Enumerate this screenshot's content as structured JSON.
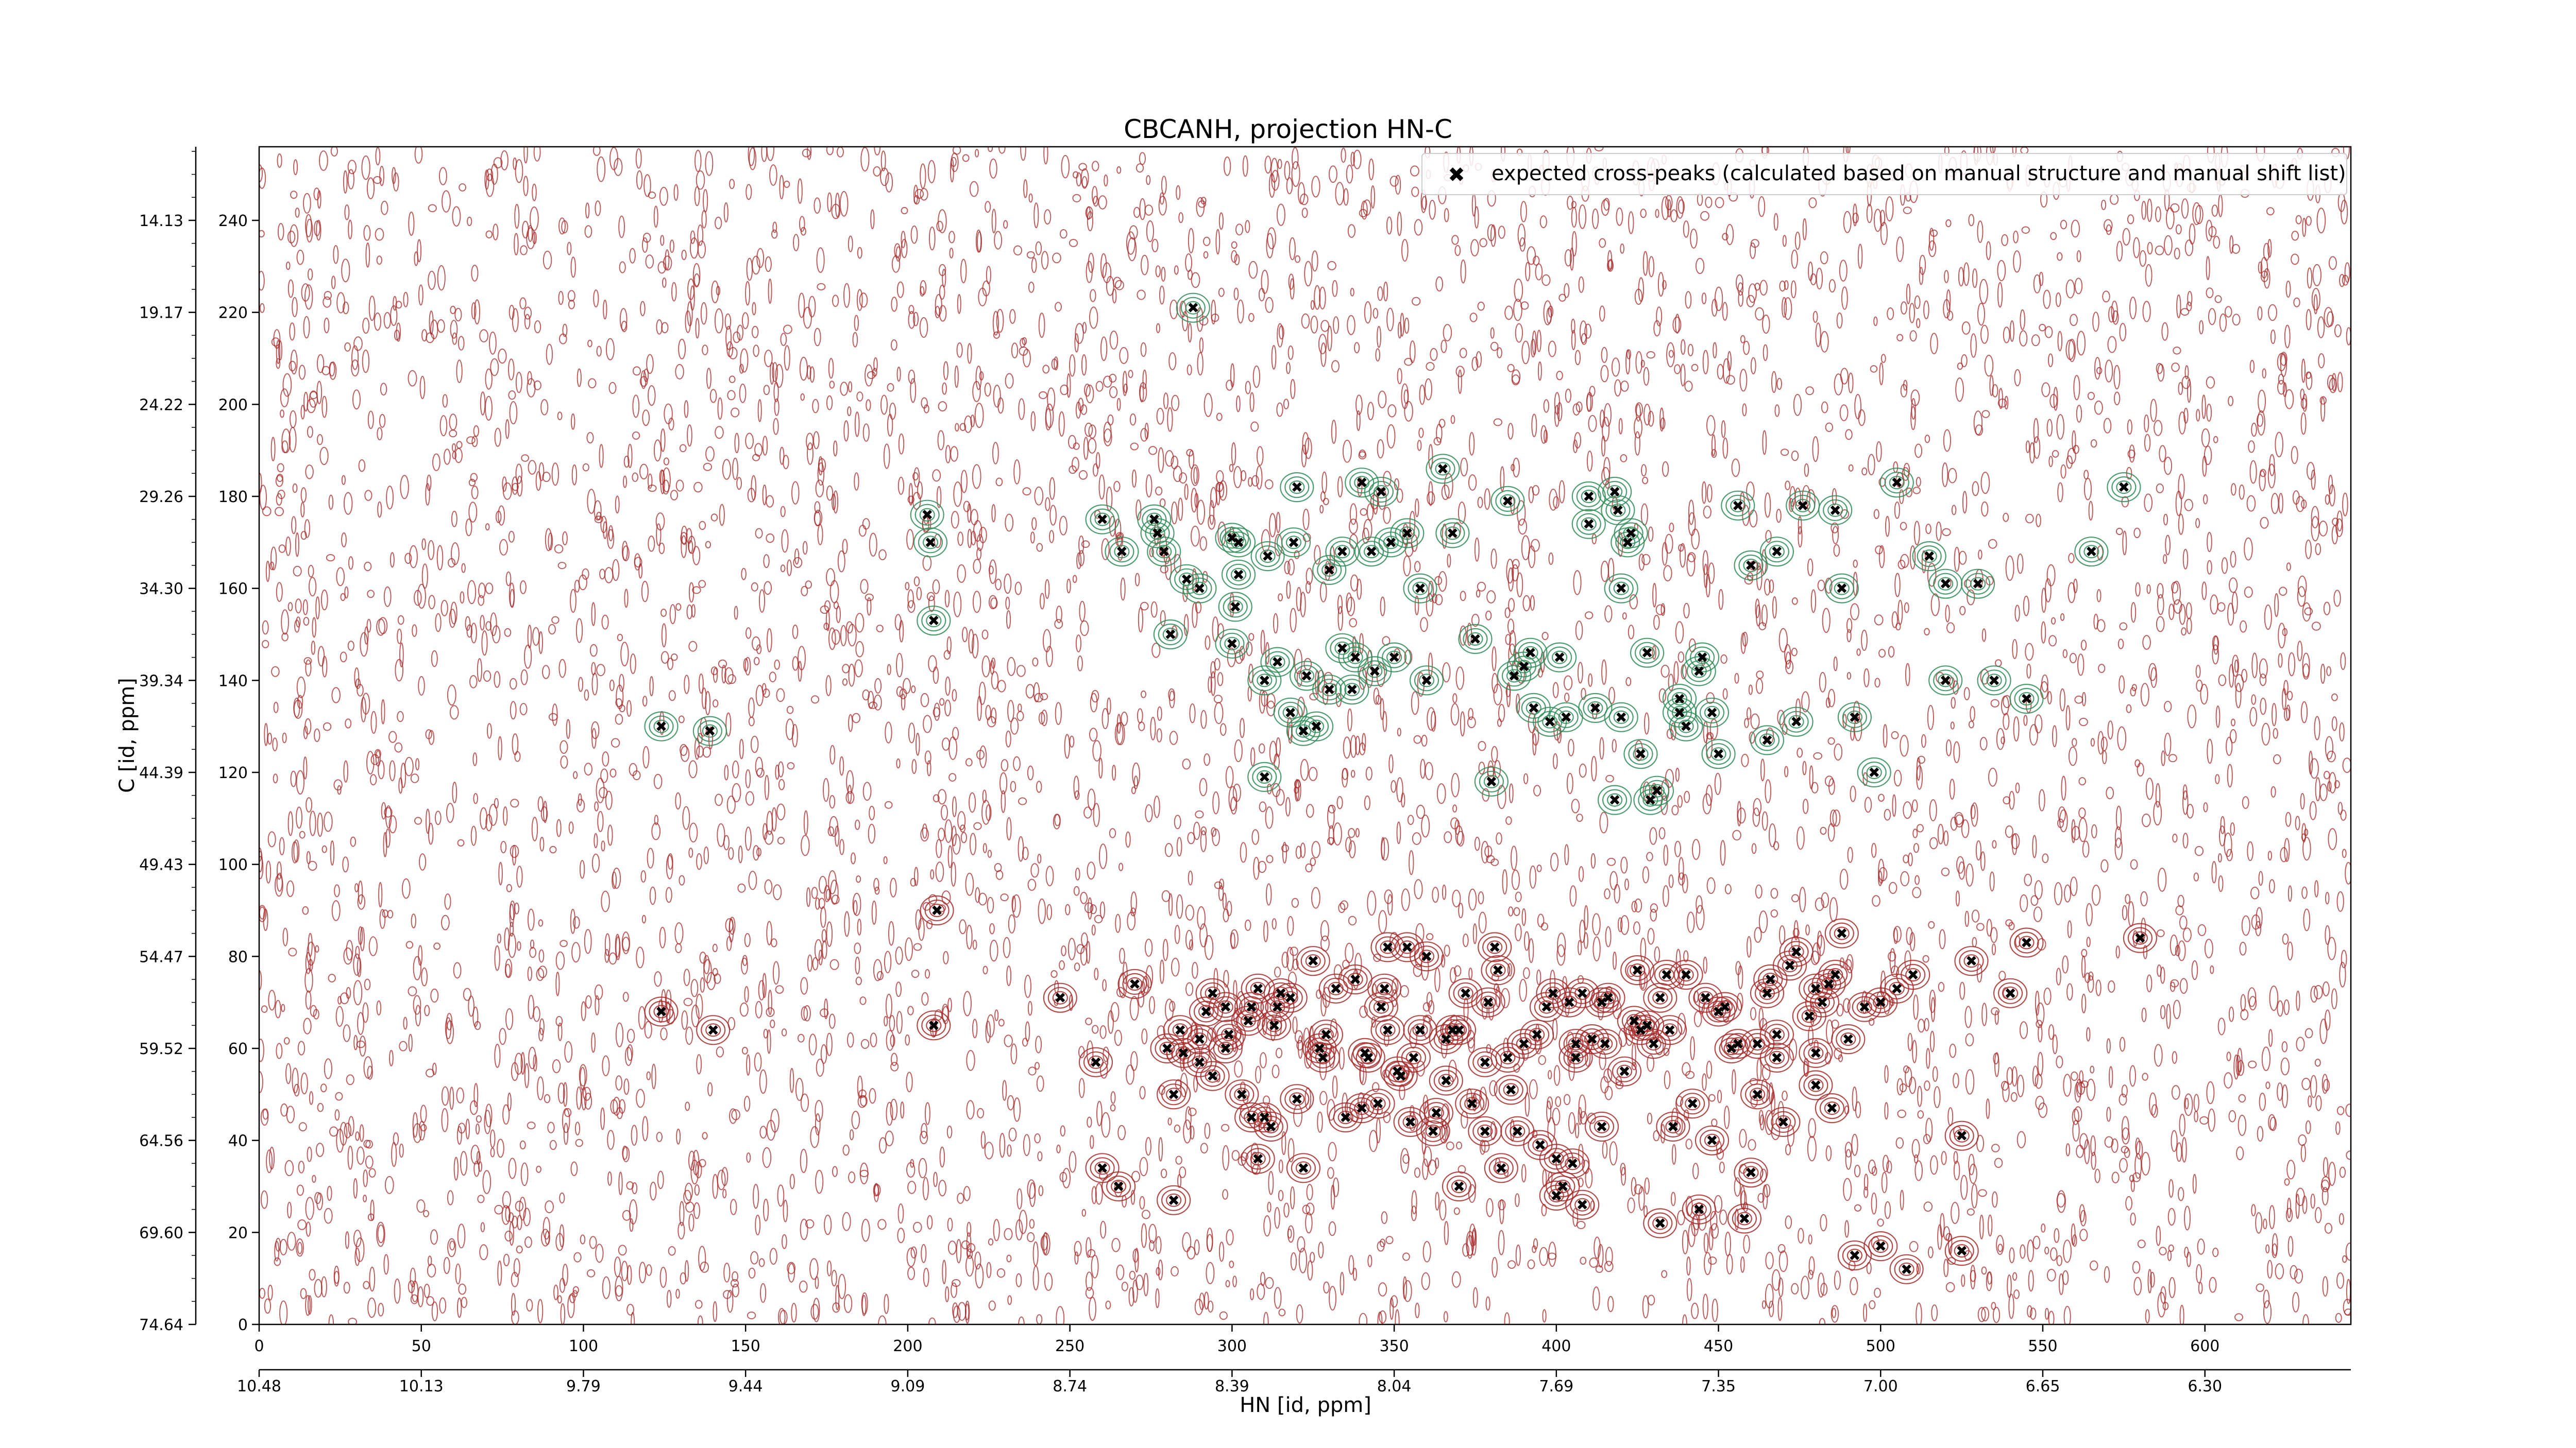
{
  "chart_data": {
    "type": "scatter",
    "title": "CBCANH, projection HN-C",
    "xlabel": "HN [id, ppm]",
    "ylabel": "C [id, ppm]",
    "x_index_ticks": [
      "0",
      "50",
      "100",
      "150",
      "200",
      "250",
      "300",
      "350",
      "400",
      "450",
      "500",
      "550",
      "600"
    ],
    "x_ppm_ticks": [
      "10.48",
      "10.13",
      "9.79",
      "9.44",
      "9.09",
      "8.74",
      "8.39",
      "8.04",
      "7.69",
      "7.35",
      "7.00",
      "6.65",
      "6.30"
    ],
    "y_index_ticks": [
      "0",
      "20",
      "40",
      "60",
      "80",
      "100",
      "120",
      "140",
      "160",
      "180",
      "200",
      "220",
      "240"
    ],
    "y_ppm_ticks": [
      "74.64",
      "69.60",
      "64.56",
      "59.52",
      "54.47",
      "49.43",
      "44.39",
      "39.34",
      "34.30",
      "29.26",
      "24.22",
      "19.17",
      "14.13"
    ],
    "xlim": [
      0,
      645
    ],
    "ylim": [
      0,
      256
    ],
    "grid": false,
    "legend_position": "top-right",
    "colors": {
      "expected": "#0000ee",
      "positive_contour": "#a52a2a",
      "negative_contour": "#2e8b57"
    },
    "series": [
      {
        "name": "expected cross-peaks (calculated based on manual structure and manual shift list)",
        "marker": "x",
        "x": [
          124,
          140,
          209,
          124,
          139,
          208,
          207,
          206,
          208,
          247,
          258,
          260,
          265,
          266,
          276,
          277,
          279,
          281,
          282,
          284,
          285,
          290,
          292,
          294,
          298,
          299,
          300,
          301,
          302,
          303,
          305,
          306,
          308,
          310,
          311,
          312,
          313,
          314,
          315,
          318,
          319,
          320,
          322,
          323,
          325,
          327,
          329,
          332,
          334,
          335,
          337,
          338,
          340,
          341,
          343,
          344,
          346,
          347,
          348,
          349,
          351,
          352,
          354,
          355,
          356,
          358,
          360,
          363,
          366,
          368,
          370,
          372,
          375,
          378,
          379,
          381,
          383,
          385,
          387,
          390,
          392,
          393,
          395,
          397,
          399,
          400,
          401,
          403,
          404,
          406,
          408,
          410,
          411,
          412,
          414,
          415,
          416,
          418,
          419,
          420,
          421,
          423,
          424,
          426,
          428,
          429,
          430,
          431,
          432,
          434,
          435,
          436,
          438,
          440,
          442,
          444,
          446,
          448,
          450,
          452,
          454,
          456,
          458,
          460,
          462,
          465,
          466,
          468,
          470,
          472,
          474,
          476,
          478,
          480,
          482,
          484,
          486,
          488,
          490,
          492,
          495,
          498,
          500,
          505,
          510,
          515,
          520,
          525,
          530,
          535,
          540,
          545,
          580,
          282,
          286,
          290,
          294,
          298,
          302,
          306,
          310,
          314,
          318,
          322,
          326,
          330,
          334,
          338,
          342,
          346,
          350,
          354,
          358,
          362,
          366,
          370,
          374,
          378,
          382,
          386,
          390,
          394,
          398,
          402,
          406,
          410,
          414,
          418,
          422,
          426,
          432,
          438,
          444,
          450,
          456,
          462,
          468,
          474,
          480,
          486,
          492,
          280,
          300,
          320,
          340,
          360,
          380,
          400,
          420,
          440,
          460,
          480,
          500,
          520,
          260,
          270,
          290,
          310,
          330,
          345,
          365,
          385,
          405,
          425,
          445,
          465,
          485,
          505,
          525,
          545,
          565,
          575,
          288,
          308,
          328,
          348,
          368,
          388,
          408,
          428,
          448,
          468,
          488,
          508,
          528
        ],
        "y": [
          68,
          64,
          90,
          130,
          129,
          153,
          170,
          176,
          65,
          71,
          57,
          34,
          30,
          168,
          175,
          172,
          168,
          150,
          50,
          64,
          59,
          62,
          68,
          72,
          60,
          63,
          148,
          156,
          170,
          50,
          66,
          69,
          73,
          140,
          167,
          43,
          65,
          69,
          72,
          133,
          170,
          49,
          129,
          141,
          79,
          60,
          63,
          73,
          168,
          45,
          138,
          75,
          183,
          59,
          168,
          142,
          69,
          73,
          64,
          170,
          55,
          54,
          172,
          44,
          58,
          64,
          140,
          46,
          62,
          172,
          30,
          72,
          149,
          42,
          70,
          82,
          34,
          58,
          141,
          61,
          146,
          134,
          39,
          69,
          72,
          36,
          145,
          132,
          70,
          58,
          72,
          180,
          62,
          134,
          70,
          61,
          71,
          114,
          177,
          132,
          55,
          172,
          66,
          124,
          65,
          114,
          61,
          116,
          71,
          76,
          64,
          43,
          136,
          130,
          48,
          25,
          71,
          40,
          124,
          69,
          60,
          178,
          23,
          33,
          61,
          72,
          75,
          63,
          44,
          78,
          131,
          178,
          67,
          52,
          70,
          74,
          76,
          85,
          62,
          132,
          69,
          120,
          70,
          183,
          76,
          167,
          161,
          41,
          161,
          140,
          72,
          83,
          84,
          27,
          162,
          160,
          54,
          69,
          163,
          45,
          45,
          144,
          71,
          34,
          130,
          164,
          147,
          145,
          58,
          181,
          145,
          82,
          160,
          42,
          53,
          64,
          48,
          57,
          77,
          51,
          143,
          63,
          131,
          30,
          61,
          174,
          43,
          181,
          170,
          64,
          22,
          133,
          142,
          68,
          61,
          50,
          168,
          81,
          73,
          177,
          15,
          60,
          171,
          182,
          47,
          80,
          118,
          28,
          160,
          76,
          165,
          59,
          17,
          140,
          175,
          74,
          57,
          119,
          138,
          48,
          186,
          179,
          35,
          77,
          145,
          127,
          47,
          73,
          16,
          136,
          168,
          182,
          221,
          36,
          58,
          82,
          64,
          42,
          26,
          146,
          133,
          58,
          160,
          12,
          79
        ],
        "points_are_approximate": true
      }
    ]
  }
}
